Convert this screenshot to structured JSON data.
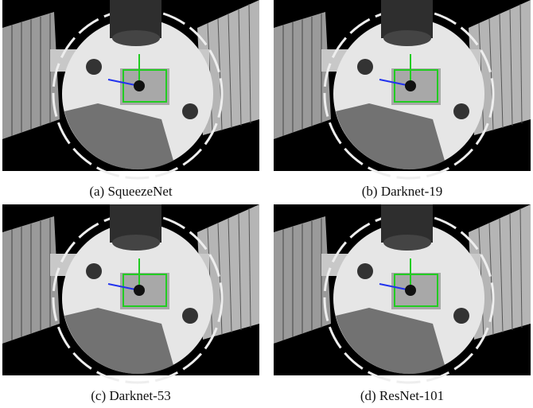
{
  "figure": {
    "panels": [
      {
        "caption": "(a) SqueezeNet"
      },
      {
        "caption": "(b) Darknet-19"
      },
      {
        "caption": "(c) Darknet-53"
      },
      {
        "caption": "(d) ResNet-101"
      }
    ]
  }
}
